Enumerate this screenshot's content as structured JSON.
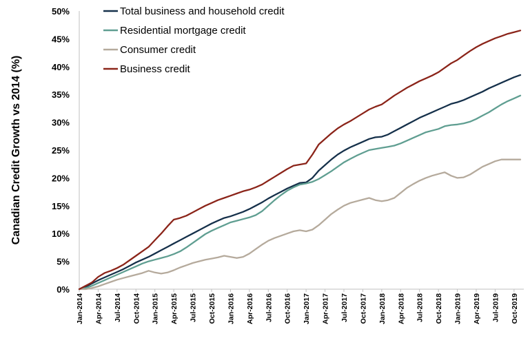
{
  "chart_data": {
    "type": "line",
    "title": "",
    "xlabel": "",
    "ylabel": "Canadian Credit Growth vs 2014 (%)",
    "ylim": [
      0,
      50
    ],
    "y_ticks": [
      "0%",
      "5%",
      "10%",
      "15%",
      "20%",
      "25%",
      "30%",
      "35%",
      "40%",
      "45%",
      "50%"
    ],
    "x_ticks": [
      "Jan-2014",
      "Apr-2014",
      "Jul-2014",
      "Oct-2014",
      "Jan-2015",
      "Apr-2015",
      "Jul-2015",
      "Oct-2015",
      "Jan-2016",
      "Apr-2016",
      "Jul-2016",
      "Oct-2016",
      "Jan-2017",
      "Apr-2017",
      "Jul-2017",
      "Oct-2017",
      "Jan-2018",
      "Apr-2018",
      "Jul-2018",
      "Oct-2018",
      "Jan-2019",
      "Apr-2019",
      "Jul-2019",
      "Oct-2019"
    ],
    "legend_position": "top-left",
    "series": [
      {
        "name": "Total business and household credit",
        "color": "#15304a",
        "points": [
          [
            0,
            0
          ],
          [
            1,
            0.4
          ],
          [
            2,
            1.0
          ],
          [
            3,
            1.6
          ],
          [
            4,
            2.1
          ],
          [
            5,
            2.6
          ],
          [
            6,
            3.1
          ],
          [
            7,
            3.6
          ],
          [
            8,
            4.2
          ],
          [
            9,
            4.8
          ],
          [
            10,
            5.3
          ],
          [
            11,
            5.8
          ],
          [
            12,
            6.4
          ],
          [
            13,
            7.0
          ],
          [
            14,
            7.6
          ],
          [
            15,
            8.2
          ],
          [
            16,
            8.8
          ],
          [
            17,
            9.4
          ],
          [
            18,
            10.0
          ],
          [
            19,
            10.6
          ],
          [
            20,
            11.2
          ],
          [
            21,
            11.8
          ],
          [
            22,
            12.3
          ],
          [
            23,
            12.8
          ],
          [
            24,
            13.1
          ],
          [
            25,
            13.5
          ],
          [
            26,
            13.9
          ],
          [
            27,
            14.4
          ],
          [
            28,
            15.0
          ],
          [
            29,
            15.6
          ],
          [
            30,
            16.3
          ],
          [
            31,
            16.9
          ],
          [
            32,
            17.5
          ],
          [
            33,
            18.1
          ],
          [
            34,
            18.6
          ],
          [
            35,
            19.1
          ],
          [
            36,
            19.2
          ],
          [
            37,
            20.0
          ],
          [
            38,
            21.3
          ],
          [
            39,
            22.3
          ],
          [
            40,
            23.3
          ],
          [
            41,
            24.2
          ],
          [
            42,
            24.9
          ],
          [
            43,
            25.5
          ],
          [
            44,
            26.0
          ],
          [
            45,
            26.5
          ],
          [
            46,
            27.0
          ],
          [
            47,
            27.3
          ],
          [
            48,
            27.4
          ],
          [
            49,
            27.8
          ],
          [
            50,
            28.4
          ],
          [
            51,
            29.0
          ],
          [
            52,
            29.6
          ],
          [
            53,
            30.2
          ],
          [
            54,
            30.8
          ],
          [
            55,
            31.3
          ],
          [
            56,
            31.8
          ],
          [
            57,
            32.3
          ],
          [
            58,
            32.8
          ],
          [
            59,
            33.3
          ],
          [
            60,
            33.6
          ],
          [
            61,
            34.0
          ],
          [
            62,
            34.5
          ],
          [
            63,
            35.0
          ],
          [
            64,
            35.5
          ],
          [
            65,
            36.1
          ],
          [
            66,
            36.6
          ],
          [
            67,
            37.1
          ],
          [
            68,
            37.6
          ],
          [
            69,
            38.1
          ],
          [
            70,
            38.5
          ]
        ]
      },
      {
        "name": "Residential mortgage credit",
        "color": "#5f9e91",
        "points": [
          [
            0,
            0
          ],
          [
            1,
            0.2
          ],
          [
            2,
            0.6
          ],
          [
            3,
            1.1
          ],
          [
            4,
            1.6
          ],
          [
            5,
            2.1
          ],
          [
            6,
            2.6
          ],
          [
            7,
            3.1
          ],
          [
            8,
            3.6
          ],
          [
            9,
            4.1
          ],
          [
            10,
            4.6
          ],
          [
            11,
            5.0
          ],
          [
            12,
            5.3
          ],
          [
            13,
            5.6
          ],
          [
            14,
            5.9
          ],
          [
            15,
            6.3
          ],
          [
            16,
            6.8
          ],
          [
            17,
            7.5
          ],
          [
            18,
            8.3
          ],
          [
            19,
            9.1
          ],
          [
            20,
            9.9
          ],
          [
            21,
            10.5
          ],
          [
            22,
            11.0
          ],
          [
            23,
            11.5
          ],
          [
            24,
            12.0
          ],
          [
            25,
            12.3
          ],
          [
            26,
            12.6
          ],
          [
            27,
            12.9
          ],
          [
            28,
            13.3
          ],
          [
            29,
            14.0
          ],
          [
            30,
            15.0
          ],
          [
            31,
            16.0
          ],
          [
            32,
            16.9
          ],
          [
            33,
            17.7
          ],
          [
            34,
            18.3
          ],
          [
            35,
            18.8
          ],
          [
            36,
            19.0
          ],
          [
            37,
            19.3
          ],
          [
            38,
            19.8
          ],
          [
            39,
            20.5
          ],
          [
            40,
            21.2
          ],
          [
            41,
            22.0
          ],
          [
            42,
            22.8
          ],
          [
            43,
            23.4
          ],
          [
            44,
            24.0
          ],
          [
            45,
            24.5
          ],
          [
            46,
            25.0
          ],
          [
            47,
            25.2
          ],
          [
            48,
            25.4
          ],
          [
            49,
            25.6
          ],
          [
            50,
            25.8
          ],
          [
            51,
            26.2
          ],
          [
            52,
            26.7
          ],
          [
            53,
            27.2
          ],
          [
            54,
            27.7
          ],
          [
            55,
            28.2
          ],
          [
            56,
            28.5
          ],
          [
            57,
            28.8
          ],
          [
            58,
            29.3
          ],
          [
            59,
            29.5
          ],
          [
            60,
            29.6
          ],
          [
            61,
            29.8
          ],
          [
            62,
            30.1
          ],
          [
            63,
            30.6
          ],
          [
            64,
            31.2
          ],
          [
            65,
            31.8
          ],
          [
            66,
            32.5
          ],
          [
            67,
            33.2
          ],
          [
            68,
            33.8
          ],
          [
            69,
            34.3
          ],
          [
            70,
            34.8
          ]
        ]
      },
      {
        "name": "Consumer credit",
        "color": "#b5aa9c",
        "points": [
          [
            0,
            0
          ],
          [
            1,
            0.0
          ],
          [
            2,
            0.2
          ],
          [
            3,
            0.5
          ],
          [
            4,
            0.9
          ],
          [
            5,
            1.3
          ],
          [
            6,
            1.7
          ],
          [
            7,
            2.0
          ],
          [
            8,
            2.3
          ],
          [
            9,
            2.6
          ],
          [
            10,
            2.9
          ],
          [
            11,
            3.3
          ],
          [
            12,
            3.0
          ],
          [
            13,
            2.8
          ],
          [
            14,
            3.0
          ],
          [
            15,
            3.4
          ],
          [
            16,
            3.9
          ],
          [
            17,
            4.3
          ],
          [
            18,
            4.7
          ],
          [
            19,
            5.0
          ],
          [
            20,
            5.3
          ],
          [
            21,
            5.5
          ],
          [
            22,
            5.7
          ],
          [
            23,
            6.0
          ],
          [
            24,
            5.8
          ],
          [
            25,
            5.6
          ],
          [
            26,
            5.8
          ],
          [
            27,
            6.4
          ],
          [
            28,
            7.2
          ],
          [
            29,
            8.0
          ],
          [
            30,
            8.7
          ],
          [
            31,
            9.2
          ],
          [
            32,
            9.6
          ],
          [
            33,
            10.0
          ],
          [
            34,
            10.4
          ],
          [
            35,
            10.6
          ],
          [
            36,
            10.4
          ],
          [
            37,
            10.7
          ],
          [
            38,
            11.5
          ],
          [
            39,
            12.5
          ],
          [
            40,
            13.5
          ],
          [
            41,
            14.3
          ],
          [
            42,
            15.0
          ],
          [
            43,
            15.5
          ],
          [
            44,
            15.8
          ],
          [
            45,
            16.1
          ],
          [
            46,
            16.4
          ],
          [
            47,
            16.0
          ],
          [
            48,
            15.8
          ],
          [
            49,
            16.0
          ],
          [
            50,
            16.4
          ],
          [
            51,
            17.3
          ],
          [
            52,
            18.2
          ],
          [
            53,
            18.9
          ],
          [
            54,
            19.5
          ],
          [
            55,
            20.0
          ],
          [
            56,
            20.4
          ],
          [
            57,
            20.7
          ],
          [
            58,
            21.0
          ],
          [
            59,
            20.4
          ],
          [
            60,
            20.0
          ],
          [
            61,
            20.1
          ],
          [
            62,
            20.6
          ],
          [
            63,
            21.3
          ],
          [
            64,
            22.0
          ],
          [
            65,
            22.5
          ],
          [
            66,
            23.0
          ],
          [
            67,
            23.3
          ],
          [
            68,
            23.3
          ],
          [
            69,
            23.3
          ],
          [
            70,
            23.3
          ]
        ]
      },
      {
        "name": "Business credit",
        "color": "#8b2419",
        "points": [
          [
            0,
            0
          ],
          [
            1,
            0.6
          ],
          [
            2,
            1.2
          ],
          [
            3,
            2.2
          ],
          [
            4,
            2.9
          ],
          [
            5,
            3.3
          ],
          [
            6,
            3.8
          ],
          [
            7,
            4.4
          ],
          [
            8,
            5.2
          ],
          [
            9,
            6.0
          ],
          [
            10,
            6.8
          ],
          [
            11,
            7.6
          ],
          [
            12,
            8.8
          ],
          [
            13,
            10.0
          ],
          [
            14,
            11.3
          ],
          [
            15,
            12.5
          ],
          [
            16,
            12.8
          ],
          [
            17,
            13.2
          ],
          [
            18,
            13.8
          ],
          [
            19,
            14.4
          ],
          [
            20,
            15.0
          ],
          [
            21,
            15.5
          ],
          [
            22,
            16.0
          ],
          [
            23,
            16.4
          ],
          [
            24,
            16.8
          ],
          [
            25,
            17.2
          ],
          [
            26,
            17.6
          ],
          [
            27,
            17.9
          ],
          [
            28,
            18.3
          ],
          [
            29,
            18.8
          ],
          [
            30,
            19.5
          ],
          [
            31,
            20.2
          ],
          [
            32,
            20.9
          ],
          [
            33,
            21.6
          ],
          [
            34,
            22.2
          ],
          [
            35,
            22.4
          ],
          [
            36,
            22.6
          ],
          [
            37,
            24.2
          ],
          [
            38,
            26.0
          ],
          [
            39,
            27.0
          ],
          [
            40,
            28.0
          ],
          [
            41,
            28.9
          ],
          [
            42,
            29.6
          ],
          [
            43,
            30.2
          ],
          [
            44,
            30.9
          ],
          [
            45,
            31.6
          ],
          [
            46,
            32.3
          ],
          [
            47,
            32.8
          ],
          [
            48,
            33.2
          ],
          [
            49,
            34.0
          ],
          [
            50,
            34.8
          ],
          [
            51,
            35.5
          ],
          [
            52,
            36.2
          ],
          [
            53,
            36.8
          ],
          [
            54,
            37.4
          ],
          [
            55,
            37.9
          ],
          [
            56,
            38.4
          ],
          [
            57,
            39.0
          ],
          [
            58,
            39.8
          ],
          [
            59,
            40.6
          ],
          [
            60,
            41.2
          ],
          [
            61,
            42.0
          ],
          [
            62,
            42.8
          ],
          [
            63,
            43.5
          ],
          [
            64,
            44.1
          ],
          [
            65,
            44.6
          ],
          [
            66,
            45.1
          ],
          [
            67,
            45.5
          ],
          [
            68,
            45.9
          ],
          [
            69,
            46.2
          ],
          [
            70,
            46.5
          ]
        ]
      }
    ]
  }
}
